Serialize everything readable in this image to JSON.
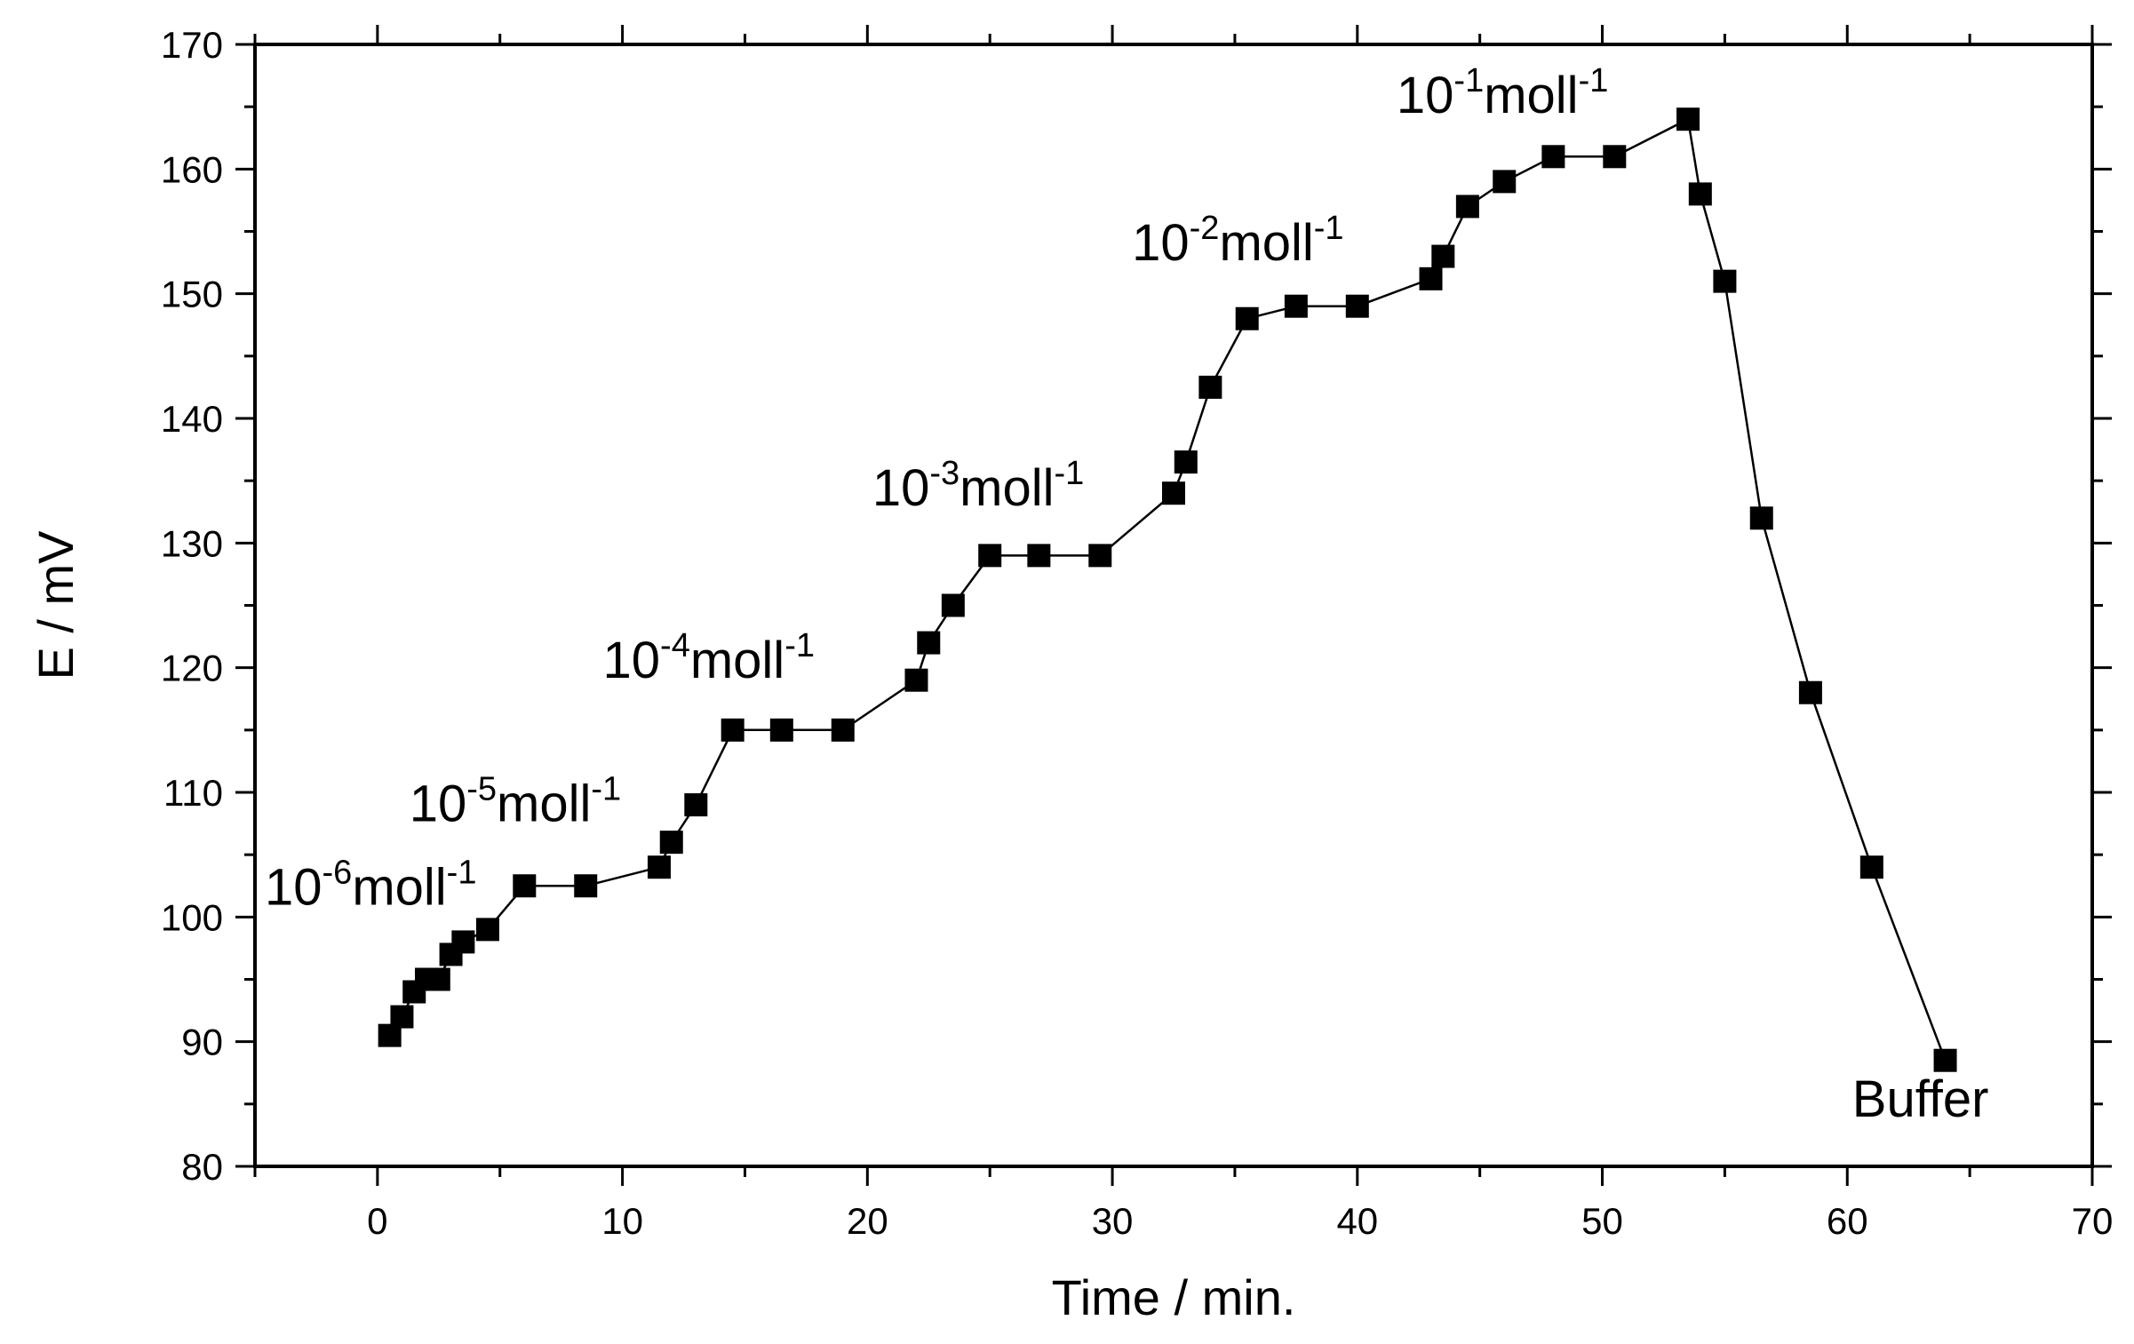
{
  "chart_data": {
    "type": "line",
    "title": "",
    "xlabel": "Time / min.",
    "ylabel": "E / mV",
    "xlim": [
      -5,
      70
    ],
    "ylim": [
      80,
      170
    ],
    "xticks": [
      0,
      10,
      20,
      30,
      40,
      50,
      60,
      70
    ],
    "yticks": [
      80,
      90,
      100,
      110,
      120,
      130,
      140,
      150,
      160,
      170
    ],
    "grid": false,
    "marker": "square",
    "series": [
      {
        "name": "E",
        "x": [
          0.5,
          1,
          1.5,
          2,
          2.5,
          3,
          3.5,
          4.5,
          6,
          8.5,
          11.5,
          12,
          13,
          14.5,
          16.5,
          19,
          22,
          22.5,
          23.5,
          25,
          27,
          29.5,
          32.5,
          33,
          34,
          35.5,
          37.5,
          40,
          43,
          43.5,
          44.5,
          46,
          48,
          50.5,
          53.5,
          54,
          55,
          56.5,
          58.5,
          61,
          64
        ],
        "y": [
          90.5,
          92,
          94,
          95,
          95,
          97,
          98,
          99,
          102.5,
          102.5,
          104,
          106,
          109,
          115,
          115,
          115,
          119,
          122,
          125,
          129,
          129,
          129,
          134,
          136.5,
          142.5,
          148,
          149,
          149,
          151.2,
          153,
          157,
          159,
          161,
          161,
          164,
          158,
          151,
          132,
          118,
          104,
          88.5
        ]
      }
    ],
    "annotations": [
      {
        "base": "10",
        "exp": "-6",
        "unit": "moll",
        "unit_exp": "-1",
        "x": -4.6,
        "y": 101
      },
      {
        "base": "10",
        "exp": "-5",
        "unit": "moll",
        "unit_exp": "-1",
        "x": 1.3,
        "y": 107.7
      },
      {
        "base": "10",
        "exp": "-4",
        "unit": "moll",
        "unit_exp": "-1",
        "x": 9.2,
        "y": 119.2
      },
      {
        "base": "10",
        "exp": "-3",
        "unit": "moll",
        "unit_exp": "-1",
        "x": 20.2,
        "y": 133
      },
      {
        "base": "10",
        "exp": "-2",
        "unit": "moll",
        "unit_exp": "-1",
        "x": 30.8,
        "y": 152.7
      },
      {
        "base": "10",
        "exp": "-1",
        "unit": "moll",
        "unit_exp": "-1",
        "x": 41.6,
        "y": 164.5
      },
      {
        "text": "Buffer",
        "x": 60.2,
        "y": 84
      }
    ]
  }
}
